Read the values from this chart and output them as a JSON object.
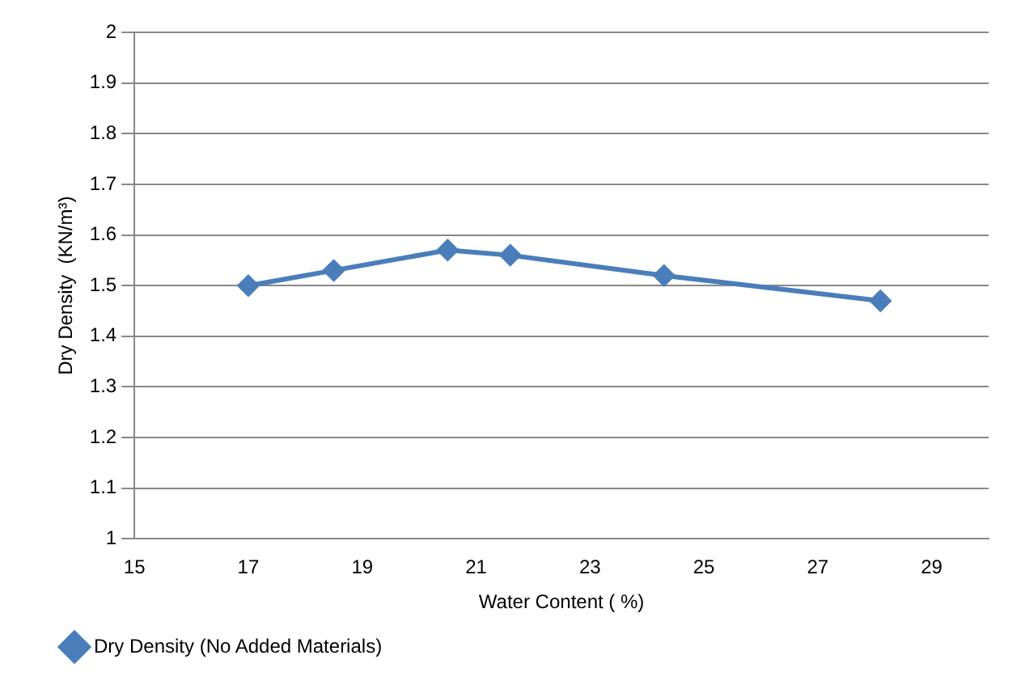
{
  "chart_data": {
    "type": "line",
    "xlabel": "Water Content ( %)",
    "ylabel": "Dry Density  (KN/m³)",
    "x": [
      17,
      18.5,
      20.5,
      21.6,
      24.3,
      28.1
    ],
    "series": [
      {
        "name": "Dry Density (No Added Materials)",
        "color": "#4a7ebb",
        "values": [
          1.5,
          1.53,
          1.57,
          1.56,
          1.52,
          1.47
        ]
      }
    ],
    "xlim": [
      15,
      30
    ],
    "xticks": [
      15,
      17,
      19,
      21,
      23,
      25,
      27,
      29
    ],
    "ylim": [
      1,
      2
    ],
    "yticks": [
      1,
      1.1,
      1.2,
      1.3,
      1.4,
      1.5,
      1.6,
      1.7,
      1.8,
      1.9,
      2
    ],
    "grid": "y",
    "legend": "bottom left",
    "marker": "diamond",
    "line_style": "solid"
  }
}
